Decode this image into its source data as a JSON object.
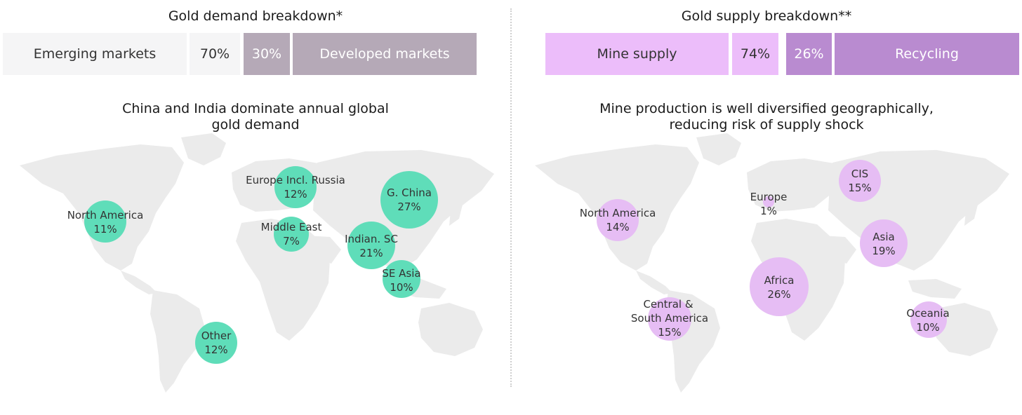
{
  "demand": {
    "title": "Gold demand breakdown*",
    "bar": {
      "left_label": "Emerging markets",
      "left_value": "70%",
      "right_value": "30%",
      "right_label": "Developed markets",
      "left_color": "#f5f5f6",
      "right_color": "#b5a9b7"
    },
    "subtitle_line1": "China and India dominate annual global",
    "subtitle_line2": "gold demand",
    "bubble_color": "#5fddb9"
  },
  "supply": {
    "title": "Gold supply breakdown**",
    "bar": {
      "left_label": "Mine supply",
      "left_value": "74%",
      "right_value": "26%",
      "right_label": "Recycling",
      "left_color": "#ecbdfa",
      "right_color": "#b98bd0"
    },
    "subtitle_line1": "Mine production is well diversified geographically,",
    "subtitle_line2": "reducing risk of supply shock",
    "bubble_color": "#e6bdf4"
  },
  "chart_data": [
    {
      "type": "bubble-map",
      "title": "Gold demand breakdown*",
      "subtitle": "China and India dominate annual global gold demand",
      "stacked_bar": [
        {
          "label": "Emerging markets",
          "value": 70
        },
        {
          "label": "Developed markets",
          "value": 30
        }
      ],
      "regions": [
        {
          "name": "North America",
          "value": 11,
          "value_label": "11%"
        },
        {
          "name": "Europe Incl. Russia",
          "value": 12,
          "value_label": "12%"
        },
        {
          "name": "G. China",
          "value": 27,
          "value_label": "27%"
        },
        {
          "name": "Middle East",
          "value": 7,
          "value_label": "7%"
        },
        {
          "name": "Indian. SC",
          "value": 21,
          "value_label": "21%"
        },
        {
          "name": "SE Asia",
          "value": 10,
          "value_label": "10%"
        },
        {
          "name": "Other",
          "value": 12,
          "value_label": "12%"
        }
      ]
    },
    {
      "type": "bubble-map",
      "title": "Gold supply breakdown**",
      "subtitle": "Mine production is well diversified geographically, reducing risk of supply shock",
      "stacked_bar": [
        {
          "label": "Mine supply",
          "value": 74
        },
        {
          "label": "Recycling",
          "value": 26
        }
      ],
      "regions": [
        {
          "name": "North America",
          "value": 14,
          "value_label": "14%"
        },
        {
          "name": "Europe",
          "value": 1,
          "value_label": "1%"
        },
        {
          "name": "CIS",
          "value": 15,
          "value_label": "15%"
        },
        {
          "name": "Asia",
          "value": 19,
          "value_label": "19%"
        },
        {
          "name": "Africa",
          "value": 26,
          "value_label": "26%"
        },
        {
          "name": "Central & South America",
          "value": 15,
          "value_label": "15%"
        },
        {
          "name": "Oceania",
          "value": 10,
          "value_label": "10%"
        }
      ]
    }
  ]
}
